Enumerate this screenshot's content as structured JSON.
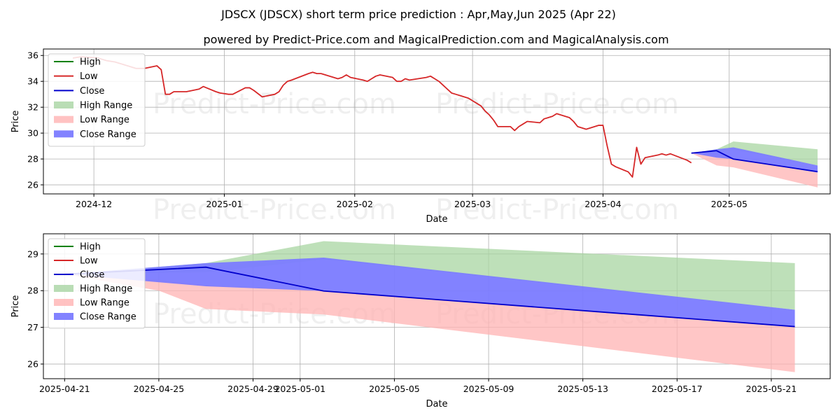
{
  "title": "JDSCX (JDSCX) short term price prediction : Apr,May,Jun 2025 (Apr 22)",
  "subtitle": "powered by Predict-Price.com and MagicalPrediction.com and MagicalAnalysis.com",
  "watermark": "Predict-Price.com",
  "colors": {
    "high": "#008000",
    "low": "#d62728",
    "close": "#0000cc",
    "high_range": "#a8d5a2",
    "low_range": "#ffb3b3",
    "close_range": "#7b7bff"
  },
  "legend": [
    "High",
    "Low",
    "Close",
    "High Range",
    "Low Range",
    "Close Range"
  ],
  "chart_data": [
    {
      "type": "line",
      "xlabel": "Date",
      "ylabel": "Price",
      "xlim": [
        "2024-11-19",
        "2025-05-25"
      ],
      "ylim": [
        25.3,
        36.5
      ],
      "x_ticks": [
        "2024-12-01",
        "2025-01-01",
        "2025-02-01",
        "2025-03-01",
        "2025-04-01",
        "2025-05-01"
      ],
      "x_tick_labels": [
        "2024-12",
        "2025-01",
        "2025-02",
        "2025-03",
        "2025-04",
        "2025-05"
      ],
      "y_ticks": [
        26,
        28,
        30,
        32,
        34,
        36
      ],
      "grid": true,
      "legend_position": "upper-left",
      "series": [
        {
          "name": "Low",
          "dates": [
            "2024-11-26",
            "2024-11-28",
            "2024-12-02",
            "2024-12-04",
            "2024-12-06",
            "2024-12-09",
            "2024-12-11",
            "2024-12-13",
            "2024-12-16",
            "2024-12-17",
            "2024-12-18",
            "2024-12-19",
            "2024-12-20",
            "2024-12-23",
            "2024-12-26",
            "2024-12-27",
            "2024-12-30",
            "2024-12-31",
            "2025-01-02",
            "2025-01-03",
            "2025-01-06",
            "2025-01-07",
            "2025-01-08",
            "2025-01-10",
            "2025-01-13",
            "2025-01-14",
            "2025-01-15",
            "2025-01-16",
            "2025-01-17",
            "2025-01-21",
            "2025-01-22",
            "2025-01-23",
            "2025-01-24",
            "2025-01-27",
            "2025-01-28",
            "2025-01-29",
            "2025-01-30",
            "2025-01-31",
            "2025-02-03",
            "2025-02-04",
            "2025-02-05",
            "2025-02-06",
            "2025-02-07",
            "2025-02-10",
            "2025-02-11",
            "2025-02-12",
            "2025-02-13",
            "2025-02-14",
            "2025-02-18",
            "2025-02-19",
            "2025-02-20",
            "2025-02-21",
            "2025-02-24",
            "2025-02-25",
            "2025-02-26",
            "2025-02-27",
            "2025-02-28",
            "2025-03-03",
            "2025-03-04",
            "2025-03-05",
            "2025-03-06",
            "2025-03-07",
            "2025-03-10",
            "2025-03-11",
            "2025-03-12",
            "2025-03-13",
            "2025-03-14",
            "2025-03-17",
            "2025-03-18",
            "2025-03-19",
            "2025-03-20",
            "2025-03-21",
            "2025-03-24",
            "2025-03-25",
            "2025-03-26",
            "2025-03-27",
            "2025-03-28",
            "2025-03-31",
            "2025-04-01",
            "2025-04-02",
            "2025-04-03",
            "2025-04-04",
            "2025-04-07",
            "2025-04-08",
            "2025-04-09",
            "2025-04-10",
            "2025-04-11",
            "2025-04-14",
            "2025-04-15",
            "2025-04-16",
            "2025-04-17",
            "2025-04-21",
            "2025-04-22"
          ],
          "values": [
            35.8,
            35.9,
            35.8,
            35.6,
            35.5,
            35.2,
            35.0,
            35.0,
            35.2,
            34.9,
            33.0,
            33.0,
            33.2,
            33.2,
            33.4,
            33.6,
            33.2,
            33.1,
            33.0,
            33.0,
            33.5,
            33.5,
            33.3,
            32.8,
            33.0,
            33.2,
            33.7,
            34.0,
            34.1,
            34.6,
            34.7,
            34.6,
            34.6,
            34.3,
            34.2,
            34.3,
            34.5,
            34.3,
            34.1,
            34.0,
            34.2,
            34.4,
            34.5,
            34.3,
            34.0,
            34.0,
            34.2,
            34.1,
            34.3,
            34.4,
            34.2,
            34.0,
            33.1,
            33.0,
            32.9,
            32.8,
            32.7,
            32.1,
            31.7,
            31.4,
            31.0,
            30.5,
            30.5,
            30.2,
            30.5,
            30.7,
            30.9,
            30.8,
            31.1,
            31.2,
            31.3,
            31.5,
            31.2,
            30.9,
            30.5,
            30.4,
            30.3,
            30.6,
            30.6,
            29.0,
            27.6,
            27.4,
            27.0,
            26.6,
            28.9,
            27.6,
            28.1,
            28.3,
            28.4,
            28.3,
            28.4,
            27.9,
            27.7
          ]
        },
        {
          "name": "Close",
          "dates": [
            "2025-04-22",
            "2025-04-28",
            "2025-05-02",
            "2025-05-22"
          ],
          "values": [
            28.45,
            28.64,
            27.99,
            27.02
          ]
        },
        {
          "name": "High Range",
          "dates": [
            "2025-04-22",
            "2025-04-28",
            "2025-05-02",
            "2025-05-22"
          ],
          "upper": [
            28.45,
            28.75,
            29.35,
            28.75
          ],
          "lower": [
            28.45,
            28.45,
            28.7,
            27.5
          ]
        },
        {
          "name": "Low Range",
          "dates": [
            "2025-04-22",
            "2025-04-28",
            "2025-05-02",
            "2025-05-22"
          ],
          "upper": [
            28.45,
            28.45,
            28.05,
            26.95
          ],
          "lower": [
            28.45,
            27.5,
            27.35,
            25.8
          ]
        },
        {
          "name": "Close Range",
          "dates": [
            "2025-04-22",
            "2025-04-28",
            "2025-05-02",
            "2025-05-22"
          ],
          "upper": [
            28.45,
            28.75,
            28.9,
            27.5
          ],
          "lower": [
            28.45,
            28.1,
            27.99,
            26.95
          ]
        }
      ]
    },
    {
      "type": "line",
      "xlabel": "Date",
      "ylabel": "Price",
      "xlim": [
        "2025-04-20.1",
        "2025-05-23.5"
      ],
      "ylim": [
        25.6,
        29.55
      ],
      "x_ticks": [
        "2025-04-21",
        "2025-04-25",
        "2025-04-29",
        "2025-05-01",
        "2025-05-05",
        "2025-05-09",
        "2025-05-13",
        "2025-05-17",
        "2025-05-21"
      ],
      "x_tick_labels": [
        "2025-04-21",
        "2025-04-25",
        "2025-04-29",
        "2025-05-01",
        "2025-05-05",
        "2025-05-09",
        "2025-05-13",
        "2025-05-17",
        "2025-05-21"
      ],
      "y_ticks": [
        26,
        27,
        28,
        29
      ],
      "grid": true,
      "legend_position": "upper-left",
      "series": [
        {
          "name": "Close",
          "dates": [
            "2025-04-21",
            "2025-04-27",
            "2025-05-02",
            "2025-05-22"
          ],
          "values": [
            28.45,
            28.64,
            27.99,
            27.02
          ]
        },
        {
          "name": "High Range",
          "dates": [
            "2025-04-21",
            "2025-04-27",
            "2025-05-02",
            "2025-05-22"
          ],
          "upper": [
            28.45,
            28.75,
            29.35,
            28.75
          ],
          "lower": [
            28.45,
            28.5,
            28.85,
            27.48
          ]
        },
        {
          "name": "Low Range",
          "dates": [
            "2025-04-21",
            "2025-04-25",
            "2025-04-27",
            "2025-05-02",
            "2025-05-22"
          ],
          "upper": [
            28.45,
            28.3,
            28.15,
            28.0,
            27.0
          ],
          "lower": [
            28.45,
            28.0,
            27.5,
            27.35,
            25.78
          ]
        },
        {
          "name": "Close Range",
          "dates": [
            "2025-04-21",
            "2025-04-27",
            "2025-05-02",
            "2025-05-22"
          ],
          "upper": [
            28.45,
            28.75,
            28.9,
            27.48
          ],
          "lower": [
            28.45,
            28.12,
            27.99,
            27.02
          ]
        }
      ]
    }
  ]
}
